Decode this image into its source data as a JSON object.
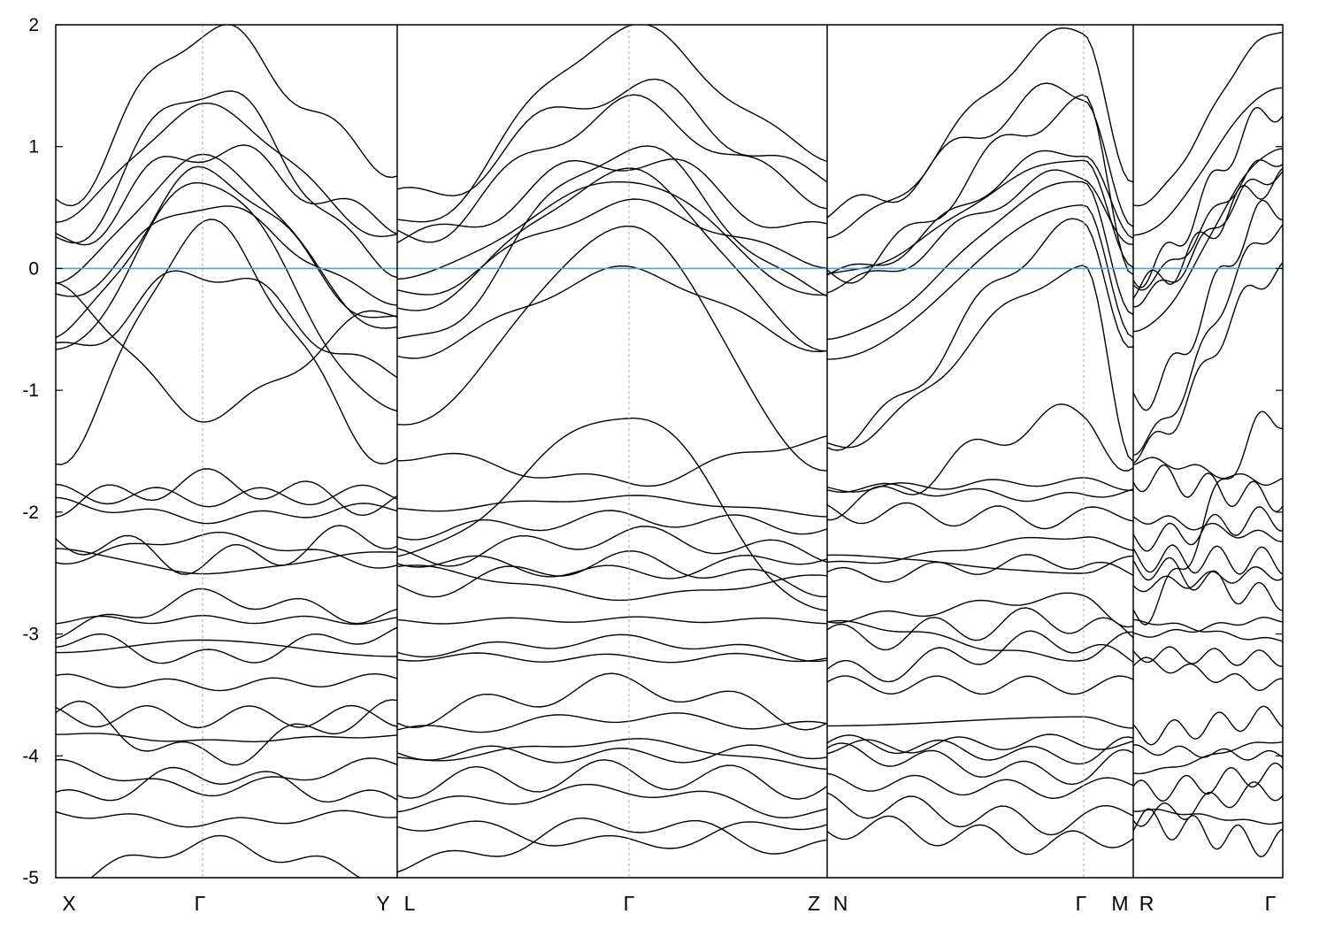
{
  "chart_data": {
    "type": "line",
    "title": "",
    "xlabel": "",
    "ylabel": "",
    "ylim": [
      -5,
      2
    ],
    "yticks": [
      2,
      1,
      0,
      -1,
      -2,
      -3,
      -4,
      -5
    ],
    "ytick_labels": [
      "2",
      "1",
      "0",
      "-1",
      "-2",
      "-3",
      "-4",
      "-5"
    ],
    "segments": [
      {
        "start": "X",
        "end": "Y",
        "length": 1.0,
        "gamma_at": 0.425
      },
      {
        "start": "L",
        "end": "Z",
        "length": 1.26,
        "gamma_at": 0.5
      },
      {
        "start": "N",
        "end": "M",
        "length": 0.9,
        "gamma_at": 0.83
      },
      {
        "start": "R",
        "end": "Γ",
        "length": 0.44,
        "gamma_at": 1.0
      }
    ],
    "kpoint_labels": [
      "X",
      "Γ",
      "Y",
      "L",
      "Γ",
      "Z",
      "N",
      "Γ",
      "M",
      "R",
      "Γ"
    ],
    "fermi_level": 0,
    "fermi_color": "#4fa3c4",
    "line_color": "#000000",
    "grid": "vertical dashed at Γ points",
    "legend": "none",
    "bands_approx": {
      "description": "representative band energies at Γ (eV), read from the figure",
      "gamma_values": [
        -4.72,
        -4.55,
        -4.28,
        -4.15,
        -4.0,
        -3.88,
        -3.68,
        -3.42,
        -3.2,
        -3.05,
        -2.88,
        -2.7,
        -2.5,
        -2.4,
        -2.2,
        -2.05,
        -1.88,
        -1.75,
        -1.2,
        -0.02,
        0.33,
        0.52,
        0.72,
        0.78,
        0.9,
        0.98,
        1.32,
        1.48,
        1.95
      ]
    }
  }
}
